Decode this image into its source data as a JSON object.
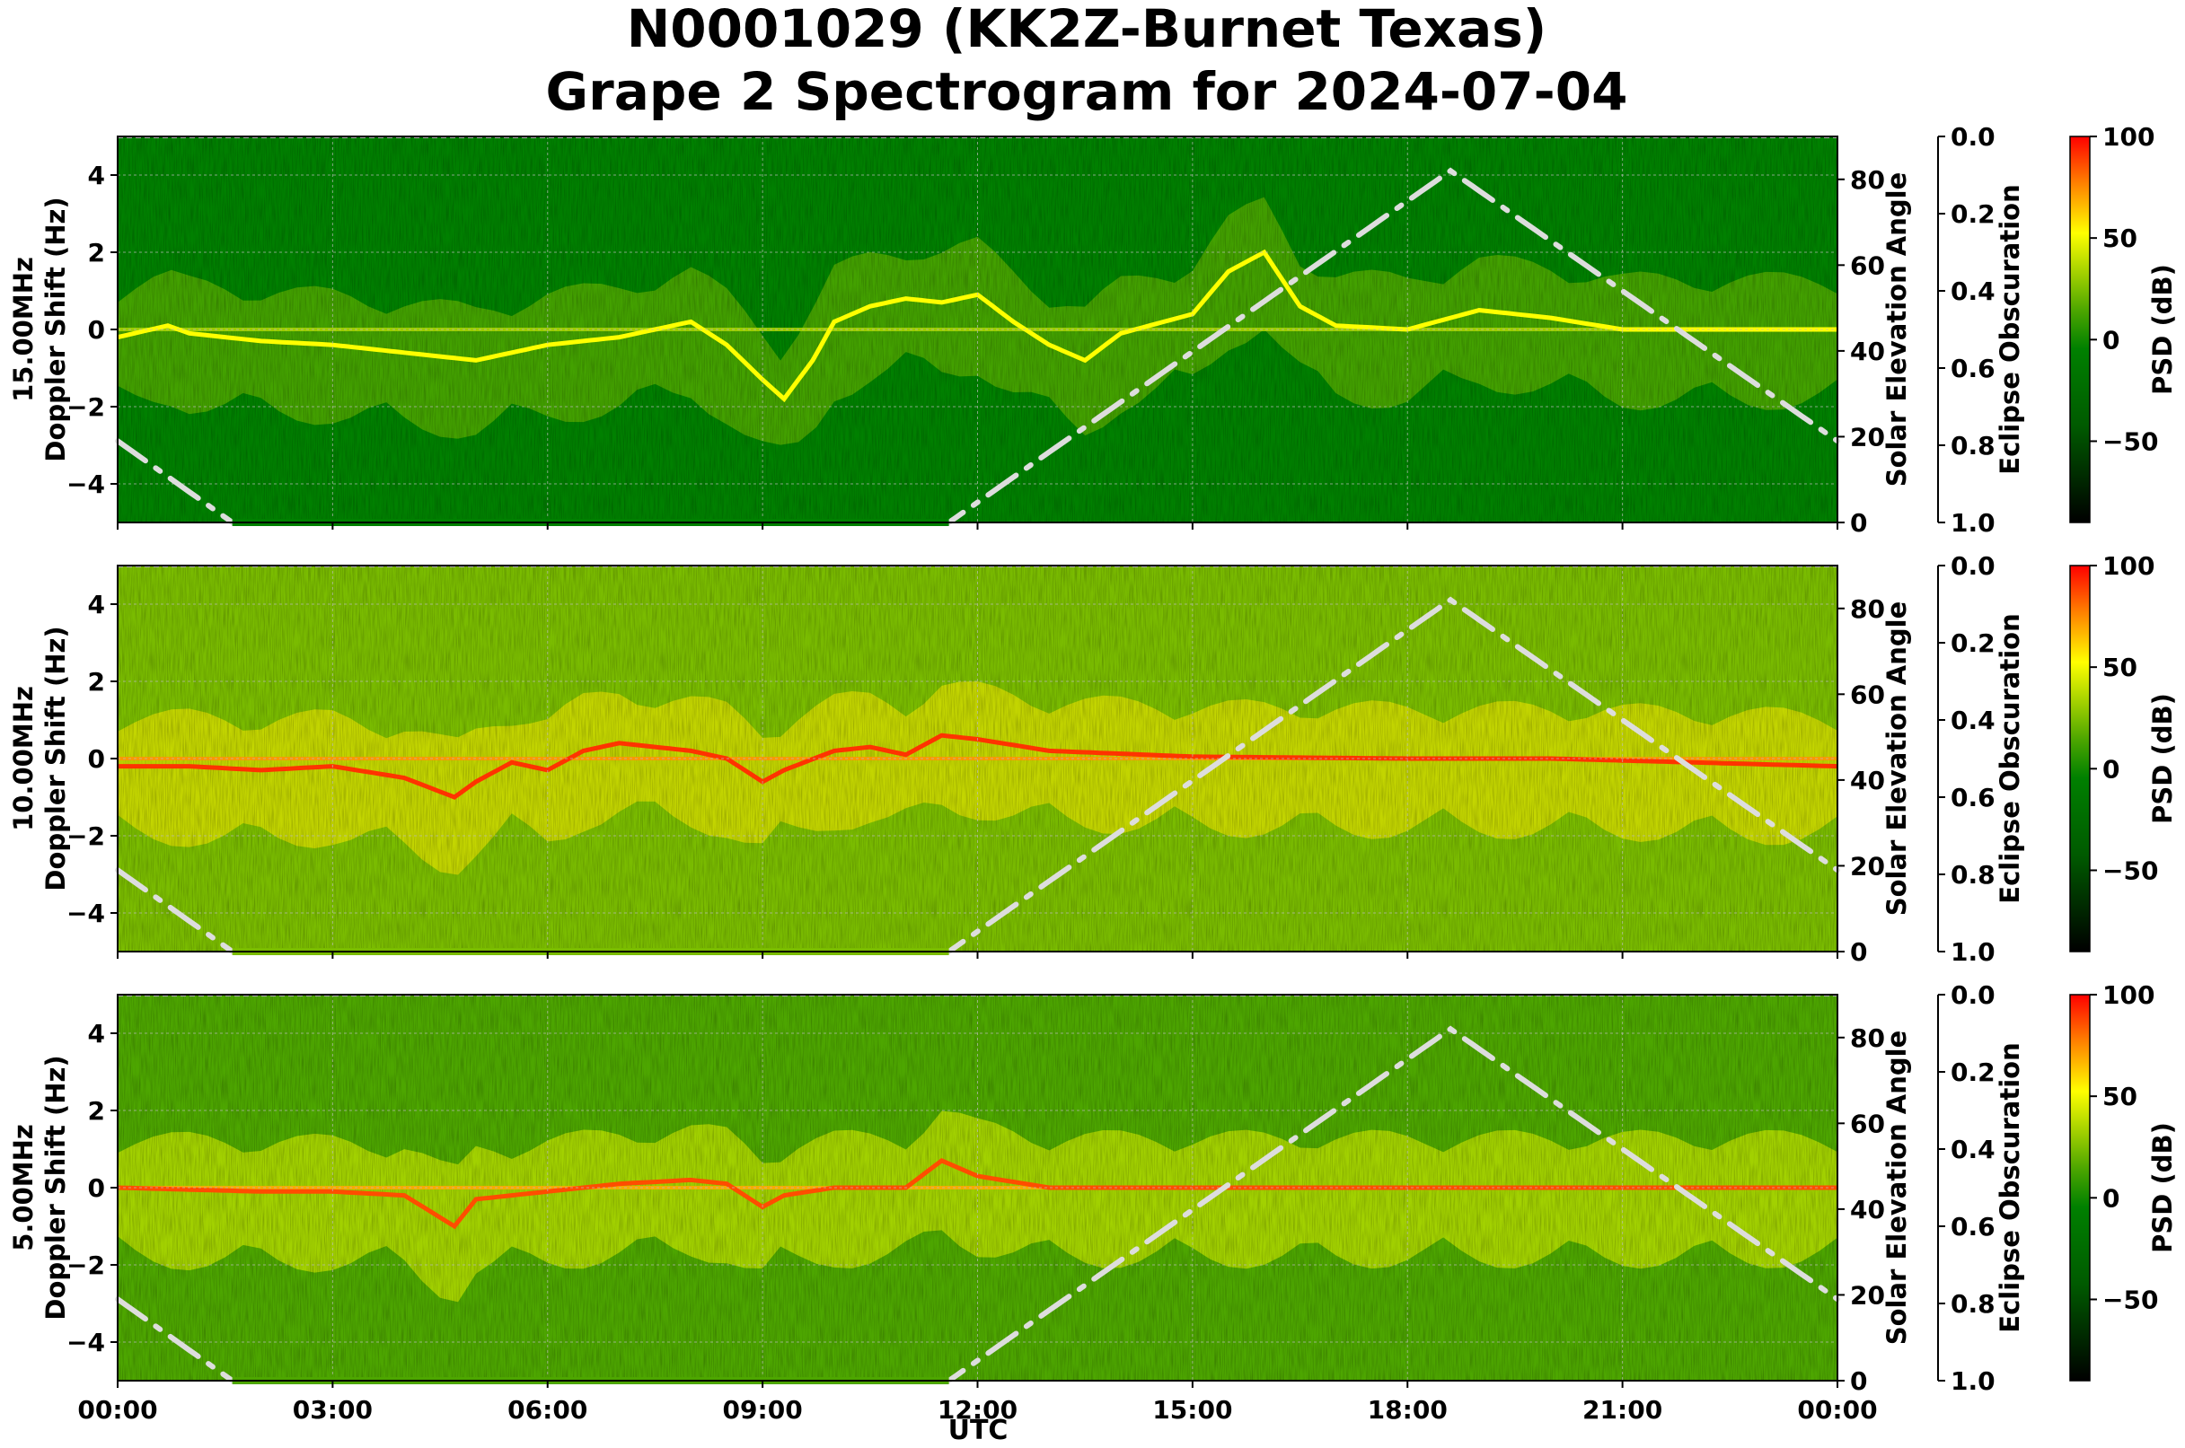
{
  "figure": {
    "title_line1": "N0001029 (KK2Z-Burnet Texas)",
    "title_line2": "Grape 2 Spectrogram for 2024-07-04",
    "xlabel": "UTC",
    "x_ticks": [
      "00:00",
      "03:00",
      "06:00",
      "09:00",
      "12:00",
      "15:00",
      "18:00",
      "21:00",
      "00:00"
    ]
  },
  "chart_data": [
    {
      "type": "heatmap",
      "panel": "15.00MHz",
      "ylabel_line1": "15.00MHz",
      "ylabel_line2": "Doppler Shift (Hz)",
      "ylim": [
        -5,
        5
      ],
      "y_ticks": [
        "4",
        "2",
        "0",
        "−2",
        "−4"
      ],
      "y_tick_values": [
        4,
        2,
        0,
        -2,
        -4
      ],
      "xlim_hours": [
        0,
        24
      ],
      "grid": true,
      "background_level_db": -20,
      "carrier_level_db": 45,
      "doppler_trace_hz": [
        [
          0,
          -0.2
        ],
        [
          0.7,
          0.1
        ],
        [
          1,
          -0.1
        ],
        [
          1.5,
          -0.2
        ],
        [
          2,
          -0.3
        ],
        [
          3,
          -0.4
        ],
        [
          4,
          -0.6
        ],
        [
          5,
          -0.8
        ],
        [
          6,
          -0.4
        ],
        [
          7,
          -0.2
        ],
        [
          8,
          0.2
        ],
        [
          8.5,
          -0.4
        ],
        [
          9,
          -1.3
        ],
        [
          9.3,
          -1.8
        ],
        [
          9.7,
          -0.8
        ],
        [
          10,
          0.2
        ],
        [
          10.5,
          0.6
        ],
        [
          11,
          0.8
        ],
        [
          11.5,
          0.7
        ],
        [
          12,
          0.9
        ],
        [
          12.5,
          0.2
        ],
        [
          13,
          -0.4
        ],
        [
          13.5,
          -0.8
        ],
        [
          14,
          -0.1
        ],
        [
          15,
          0.4
        ],
        [
          15.5,
          1.5
        ],
        [
          16,
          2.0
        ],
        [
          16.5,
          0.6
        ],
        [
          17,
          0.1
        ],
        [
          18,
          0
        ],
        [
          19,
          0.5
        ],
        [
          20,
          0.3
        ],
        [
          21,
          0
        ],
        [
          24,
          0
        ]
      ],
      "solar_elevation": {
        "ylabel": "Solar Elevation Angle",
        "ylim": [
          0,
          90
        ],
        "ticks": [
          0,
          20,
          40,
          60,
          80
        ],
        "curve": [
          [
            0,
            19
          ],
          [
            1.6,
            0
          ],
          [
            11.6,
            0
          ],
          [
            18.6,
            82
          ],
          [
            24,
            19
          ]
        ]
      },
      "eclipse_obscuration": {
        "ylabel": "Eclipse Obscuration",
        "ylim": [
          1.0,
          0.0
        ],
        "ticks": [
          "0.0",
          "0.2",
          "0.4",
          "0.6",
          "0.8",
          "1.0"
        ],
        "tick_values": [
          0,
          0.2,
          0.4,
          0.6,
          0.8,
          1.0
        ]
      },
      "colorbar": {
        "label": "PSD (dB)",
        "range": [
          -90,
          100
        ],
        "ticks": [
          "100",
          "50",
          "0",
          "−50"
        ],
        "tick_values": [
          100,
          50,
          0,
          -50
        ]
      }
    },
    {
      "type": "heatmap",
      "panel": "10.00MHz",
      "ylabel_line1": "10.00MHz",
      "ylabel_line2": "Doppler Shift (Hz)",
      "ylim": [
        -5,
        5
      ],
      "y_ticks": [
        "4",
        "2",
        "0",
        "−2",
        "−4"
      ],
      "y_tick_values": [
        4,
        2,
        0,
        -2,
        -4
      ],
      "xlim_hours": [
        0,
        24
      ],
      "grid": true,
      "background_level_db": 15,
      "carrier_level_db": 90,
      "doppler_trace_hz": [
        [
          0,
          -0.2
        ],
        [
          1,
          -0.2
        ],
        [
          2,
          -0.3
        ],
        [
          3,
          -0.2
        ],
        [
          4,
          -0.5
        ],
        [
          4.7,
          -1.0
        ],
        [
          5,
          -0.6
        ],
        [
          5.5,
          -0.1
        ],
        [
          6,
          -0.3
        ],
        [
          6.5,
          0.2
        ],
        [
          7,
          0.4
        ],
        [
          8,
          0.2
        ],
        [
          8.5,
          0
        ],
        [
          9,
          -0.6
        ],
        [
          9.3,
          -0.3
        ],
        [
          10,
          0.2
        ],
        [
          10.5,
          0.3
        ],
        [
          11,
          0.1
        ],
        [
          11.5,
          0.6
        ],
        [
          12,
          0.5
        ],
        [
          13,
          0.2
        ],
        [
          15,
          0.05
        ],
        [
          18,
          0
        ],
        [
          20,
          0
        ],
        [
          22,
          -0.1
        ],
        [
          24,
          -0.2
        ]
      ],
      "solar_elevation": {
        "ylabel": "Solar Elevation Angle",
        "ylim": [
          0,
          90
        ],
        "ticks": [
          0,
          20,
          40,
          60,
          80
        ],
        "curve": [
          [
            0,
            19
          ],
          [
            1.6,
            0
          ],
          [
            11.6,
            0
          ],
          [
            18.6,
            82
          ],
          [
            24,
            19
          ]
        ]
      },
      "eclipse_obscuration": {
        "ylabel": "Eclipse Obscuration",
        "ylim": [
          1.0,
          0.0
        ],
        "ticks": [
          "0.0",
          "0.2",
          "0.4",
          "0.6",
          "0.8",
          "1.0"
        ],
        "tick_values": [
          0,
          0.2,
          0.4,
          0.6,
          0.8,
          1.0
        ]
      },
      "colorbar": {
        "label": "PSD (dB)",
        "range": [
          -90,
          100
        ],
        "ticks": [
          "100",
          "50",
          "0",
          "−50"
        ],
        "tick_values": [
          100,
          50,
          0,
          -50
        ]
      }
    },
    {
      "type": "heatmap",
      "panel": "5.00MHz",
      "ylabel_line1": "5.00MHz",
      "ylabel_line2": "Doppler Shift (Hz)",
      "ylim": [
        -5,
        5
      ],
      "y_ticks": [
        "4",
        "2",
        "0",
        "−2",
        "−4"
      ],
      "y_tick_values": [
        4,
        2,
        0,
        -2,
        -4
      ],
      "xlim_hours": [
        0,
        24
      ],
      "grid": true,
      "background_level_db": 5,
      "carrier_level_db": 85,
      "doppler_trace_hz": [
        [
          0,
          0
        ],
        [
          2,
          -0.1
        ],
        [
          3,
          -0.1
        ],
        [
          4,
          -0.2
        ],
        [
          4.7,
          -1.0
        ],
        [
          5,
          -0.3
        ],
        [
          6,
          -0.1
        ],
        [
          7,
          0.1
        ],
        [
          8,
          0.2
        ],
        [
          8.5,
          0.1
        ],
        [
          9,
          -0.5
        ],
        [
          9.3,
          -0.2
        ],
        [
          10,
          0
        ],
        [
          11,
          0
        ],
        [
          11.5,
          0.7
        ],
        [
          12,
          0.3
        ],
        [
          13,
          0
        ],
        [
          24,
          0
        ]
      ],
      "solar_elevation": {
        "ylabel": "Solar Elevation Angle",
        "ylim": [
          0,
          90
        ],
        "ticks": [
          0,
          20,
          40,
          60,
          80
        ],
        "curve": [
          [
            0,
            19
          ],
          [
            1.6,
            0
          ],
          [
            11.6,
            0
          ],
          [
            18.6,
            82
          ],
          [
            24,
            19
          ]
        ]
      },
      "eclipse_obscuration": {
        "ylabel": "Eclipse Obscuration",
        "ylim": [
          1.0,
          0.0
        ],
        "ticks": [
          "0.0",
          "0.2",
          "0.4",
          "0.6",
          "0.8",
          "1.0"
        ],
        "tick_values": [
          0,
          0.2,
          0.4,
          0.6,
          0.8,
          1.0
        ]
      },
      "colorbar": {
        "label": "PSD (dB)",
        "range": [
          -90,
          100
        ],
        "ticks": [
          "100",
          "50",
          "0",
          "−50"
        ],
        "tick_values": [
          100,
          50,
          0,
          -50
        ]
      }
    }
  ]
}
